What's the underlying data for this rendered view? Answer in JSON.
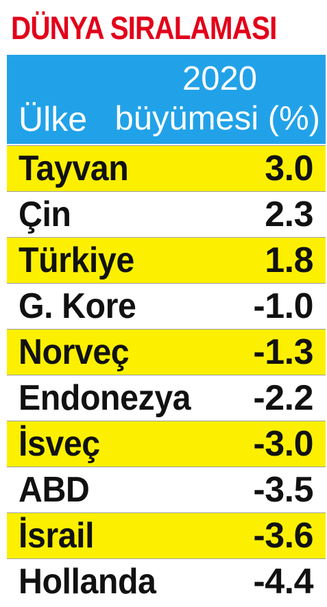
{
  "title": "DÜNYA SIRALAMASI",
  "header": {
    "country_label": "Ülke",
    "growth_year": "2020",
    "growth_label": "büyümesi (%)"
  },
  "colors": {
    "title": "#e2001a",
    "header_background": "#21a2e8",
    "highlight_row": "#fcf000",
    "row_text": "#111111"
  },
  "chart_data": {
    "type": "table",
    "title": "DÜNYA SIRALAMASI",
    "columns": [
      "Ülke",
      "2020 büyümesi (%)"
    ],
    "rows": [
      {
        "country": "Tayvan",
        "value": "3.0",
        "highlight": true
      },
      {
        "country": "Çin",
        "value": "2.3",
        "highlight": false
      },
      {
        "country": "Türkiye",
        "value": "1.8",
        "highlight": true
      },
      {
        "country": "G. Kore",
        "value": "-1.0",
        "highlight": false
      },
      {
        "country": "Norveç",
        "value": "-1.3",
        "highlight": true
      },
      {
        "country": "Endonezya",
        "value": "-2.2",
        "highlight": false
      },
      {
        "country": "İsveç",
        "value": "-3.0",
        "highlight": true
      },
      {
        "country": "ABD",
        "value": "-3.5",
        "highlight": false
      },
      {
        "country": "İsrail",
        "value": "-3.6",
        "highlight": true
      },
      {
        "country": "Hollanda",
        "value": "-4.4",
        "highlight": false
      }
    ]
  }
}
